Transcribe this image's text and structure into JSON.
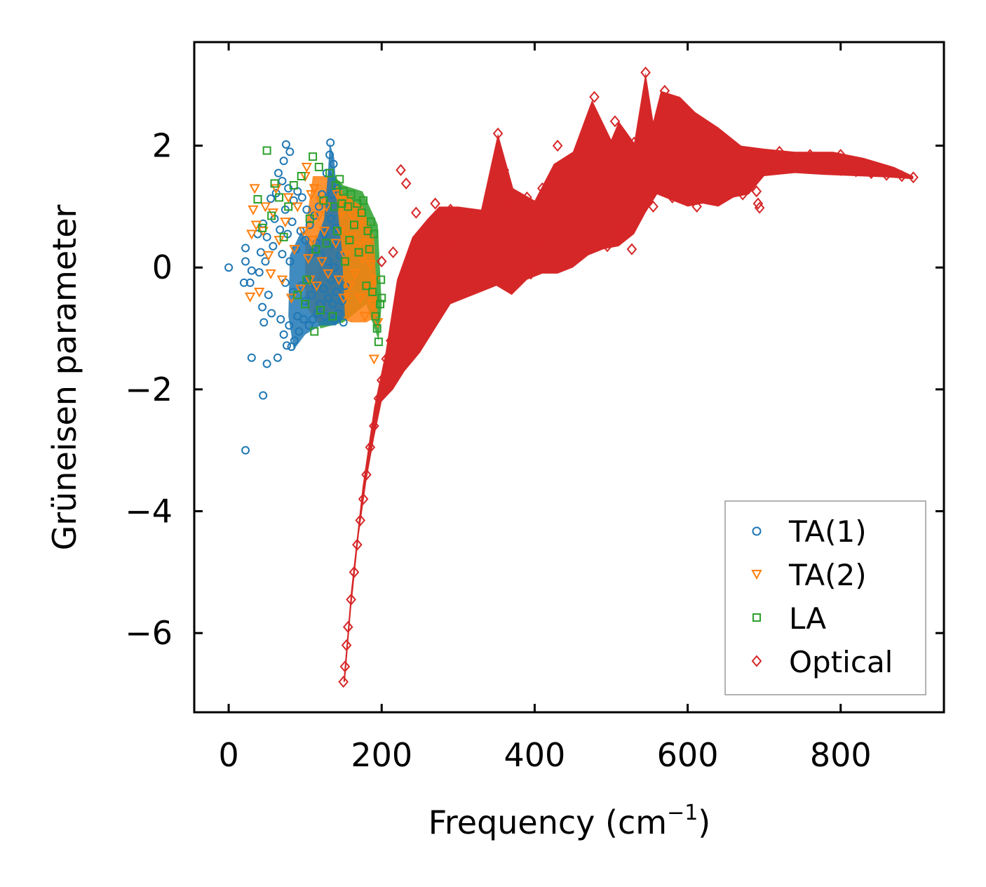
{
  "chart_data": {
    "type": "scatter",
    "title": "",
    "xlabel": "Frequency (cm",
    "xlabel_sup": "−1",
    "xlabel_end": ")",
    "ylabel": "Grüneisen parameter",
    "xlim": [
      -45,
      935
    ],
    "ylim": [
      -7.3,
      3.7
    ],
    "xticks": [
      0,
      200,
      400,
      600,
      800
    ],
    "yticks": [
      2,
      0,
      -2,
      -4,
      -6
    ],
    "xtick_labels": [
      "0",
      "200",
      "400",
      "600",
      "800"
    ],
    "ytick_labels": [
      "2",
      "0",
      "−2",
      "−4",
      "−6"
    ],
    "grid": false,
    "legend_position": "bottom-right",
    "series": [
      {
        "name": "TA(1)",
        "marker": "circle",
        "color": "#1f77b4",
        "points": [
          [
            0,
            0
          ],
          [
            22,
            -3.0
          ],
          [
            20,
            -0.25
          ],
          [
            22,
            0.1
          ],
          [
            22,
            0.32
          ],
          [
            30,
            -1.48
          ],
          [
            28,
            -0.25
          ],
          [
            30,
            -0.05
          ],
          [
            38,
            0.55
          ],
          [
            40,
            -0.08
          ],
          [
            42,
            0.25
          ],
          [
            44,
            -0.65
          ],
          [
            45,
            -2.1
          ],
          [
            45,
            0.72
          ],
          [
            46,
            -0.9
          ],
          [
            48,
            0.1
          ],
          [
            50,
            -1.58
          ],
          [
            50,
            0.5
          ],
          [
            52,
            -0.45
          ],
          [
            55,
            1.13
          ],
          [
            56,
            -0.75
          ],
          [
            58,
            0.35
          ],
          [
            60,
            0.8
          ],
          [
            62,
            1.22
          ],
          [
            64,
            -1.48
          ],
          [
            65,
            1.55
          ],
          [
            67,
            0.62
          ],
          [
            68,
            -0.85
          ],
          [
            70,
            1.42
          ],
          [
            70,
            0.22
          ],
          [
            72,
            -1.1
          ],
          [
            72,
            1.75
          ],
          [
            74,
            0.95
          ],
          [
            74,
            -0.25
          ],
          [
            75,
            2.02
          ],
          [
            76,
            -1.28
          ],
          [
            77,
            0.55
          ],
          [
            78,
            1.3
          ],
          [
            79,
            -0.95
          ],
          [
            80,
            0.1
          ],
          [
            80,
            1.9
          ],
          [
            82,
            -1.3
          ],
          [
            83,
            0.75
          ],
          [
            84,
            -0.4
          ],
          [
            85,
            1.1
          ],
          [
            86,
            -1.2
          ],
          [
            88,
            0.3
          ],
          [
            90,
            -0.8
          ],
          [
            90,
            1.25
          ],
          [
            92,
            -1.05
          ],
          [
            94,
            0.6
          ],
          [
            95,
            -0.3
          ],
          [
            96,
            1.15
          ],
          [
            98,
            -0.85
          ],
          [
            100,
            0.45
          ],
          [
            100,
            -0.55
          ],
          [
            102,
            0.95
          ],
          [
            104,
            -0.2
          ],
          [
            105,
            -0.95
          ],
          [
            106,
            0.7
          ],
          [
            108,
            -0.45
          ],
          [
            110,
            0.25
          ],
          [
            110,
            -0.85
          ],
          [
            112,
            0.85
          ],
          [
            114,
            -0.3
          ],
          [
            115,
            0.4
          ],
          [
            116,
            -0.75
          ],
          [
            118,
            1.0
          ],
          [
            120,
            -0.6
          ],
          [
            120,
            0.2
          ],
          [
            122,
            1.2
          ],
          [
            124,
            -0.35
          ],
          [
            125,
            0.55
          ],
          [
            126,
            -0.8
          ],
          [
            128,
            1.55
          ],
          [
            130,
            0.1
          ],
          [
            130,
            -0.5
          ],
          [
            132,
            1.85
          ],
          [
            133,
            2.05
          ],
          [
            134,
            0.8
          ],
          [
            134,
            -0.2
          ],
          [
            135,
            1.2
          ],
          [
            136,
            0.4
          ],
          [
            136,
            -0.6
          ],
          [
            137,
            1.7
          ],
          [
            138,
            0.0
          ],
          [
            139,
            -0.85
          ],
          [
            140,
            0.65
          ],
          [
            141,
            -0.4
          ],
          [
            142,
            1.3
          ],
          [
            144,
            -0.75
          ],
          [
            146,
            0.2
          ],
          [
            148,
            -0.55
          ],
          [
            150,
            -0.9
          ],
          [
            152,
            -0.3
          ]
        ]
      },
      {
        "name": "TA(2)",
        "marker": "triangle",
        "color": "#ff7f0e",
        "points": [
          [
            28,
            -0.48
          ],
          [
            30,
            0.55
          ],
          [
            32,
            0.95
          ],
          [
            34,
            1.3
          ],
          [
            36,
            0.7
          ],
          [
            40,
            -0.4
          ],
          [
            45,
            0.6
          ],
          [
            48,
            1.0
          ],
          [
            52,
            0.2
          ],
          [
            55,
            -0.1
          ],
          [
            58,
            0.9
          ],
          [
            62,
            1.3
          ],
          [
            66,
            0.45
          ],
          [
            70,
            -0.2
          ],
          [
            74,
            0.75
          ],
          [
            78,
            1.15
          ],
          [
            82,
            -0.5
          ],
          [
            86,
            0.3
          ],
          [
            90,
            1.0
          ],
          [
            94,
            -0.35
          ],
          [
            98,
            0.6
          ],
          [
            100,
            1.5
          ],
          [
            102,
            1.65
          ],
          [
            104,
            0.15
          ],
          [
            106,
            -0.2
          ],
          [
            108,
            1.2
          ],
          [
            110,
            0.45
          ],
          [
            112,
            1.3
          ],
          [
            115,
            -0.3
          ],
          [
            118,
            0.85
          ],
          [
            120,
            1.1
          ],
          [
            122,
            0.1
          ],
          [
            125,
            0.6
          ],
          [
            128,
            1.0
          ],
          [
            130,
            -0.1
          ],
          [
            140,
            0.4
          ],
          [
            142,
            1.2
          ],
          [
            144,
            -0.2
          ],
          [
            146,
            0.6
          ],
          [
            148,
            0.9
          ],
          [
            150,
            -0.5
          ],
          [
            152,
            0.2
          ],
          [
            155,
            1.1
          ],
          [
            158,
            -0.3
          ],
          [
            160,
            0.5
          ],
          [
            162,
            0.85
          ],
          [
            165,
            -0.1
          ],
          [
            168,
            0.35
          ],
          [
            170,
            0.7
          ],
          [
            172,
            -0.5
          ],
          [
            175,
            0.15
          ],
          [
            178,
            -0.8
          ],
          [
            180,
            0.4
          ],
          [
            183,
            -0.3
          ],
          [
            186,
            0.05
          ],
          [
            188,
            -0.6
          ],
          [
            190,
            -1.5
          ],
          [
            192,
            -0.2
          ],
          [
            195,
            -0.9
          ]
        ]
      },
      {
        "name": "LA",
        "marker": "square",
        "color": "#2ca02c",
        "points": [
          [
            50,
            1.92
          ],
          [
            38,
            1.12
          ],
          [
            44,
            0.65
          ],
          [
            56,
            0.85
          ],
          [
            60,
            1.38
          ],
          [
            66,
            1.15
          ],
          [
            72,
            0.5
          ],
          [
            78,
            1.0
          ],
          [
            85,
            1.35
          ],
          [
            90,
            -0.45
          ],
          [
            95,
            1.5
          ],
          [
            100,
            -0.6
          ],
          [
            102,
            -0.2
          ],
          [
            106,
            0.8
          ],
          [
            110,
            1.82
          ],
          [
            112,
            -1.05
          ],
          [
            114,
            0.3
          ],
          [
            118,
            1.65
          ],
          [
            120,
            -0.7
          ],
          [
            124,
            1.1
          ],
          [
            128,
            0.4
          ],
          [
            132,
            1.55
          ],
          [
            136,
            -0.8
          ],
          [
            138,
            1.0
          ],
          [
            140,
            1.35
          ],
          [
            142,
            0.6
          ],
          [
            145,
            1.45
          ],
          [
            148,
            1.05
          ],
          [
            150,
            1.25
          ],
          [
            152,
            0.1
          ],
          [
            156,
            1.0
          ],
          [
            158,
            0.45
          ],
          [
            160,
            1.2
          ],
          [
            164,
            0.7
          ],
          [
            168,
            1.05
          ],
          [
            170,
            0.25
          ],
          [
            174,
            0.9
          ],
          [
            176,
            1.1
          ],
          [
            180,
            -0.3
          ],
          [
            182,
            0.6
          ],
          [
            184,
            0.3
          ],
          [
            186,
            0.75
          ],
          [
            188,
            -0.4
          ],
          [
            190,
            0.55
          ],
          [
            192,
            -0.8
          ],
          [
            194,
            -1.0
          ],
          [
            196,
            -1.22
          ],
          [
            198,
            -0.6
          ],
          [
            199,
            -0.2
          ],
          [
            200,
            -0.5
          ]
        ]
      },
      {
        "name": "Optical",
        "marker": "diamond",
        "color": "#d62728",
        "points": [
          [
            150,
            -6.8
          ],
          [
            152,
            -6.55
          ],
          [
            154,
            -6.2
          ],
          [
            156,
            -5.9
          ],
          [
            160,
            -5.45
          ],
          [
            164,
            -5.0
          ],
          [
            168,
            -4.55
          ],
          [
            172,
            -4.15
          ],
          [
            176,
            -3.8
          ],
          [
            180,
            -3.4
          ],
          [
            185,
            -2.95
          ],
          [
            190,
            -2.6
          ],
          [
            196,
            -2.15
          ],
          [
            200,
            -1.85
          ],
          [
            206,
            -1.5
          ],
          [
            212,
            -1.2
          ],
          [
            220,
            -0.9
          ],
          [
            230,
            -0.6
          ],
          [
            240,
            -0.3
          ],
          [
            250,
            -0.05
          ],
          [
            265,
            0.2
          ],
          [
            285,
            0.35
          ],
          [
            300,
            0.55
          ],
          [
            320,
            0.7
          ],
          [
            340,
            0.9
          ],
          [
            355,
            1.05
          ],
          [
            370,
            1.0
          ],
          [
            390,
            1.15
          ],
          [
            410,
            1.3
          ],
          [
            430,
            1.55
          ],
          [
            450,
            1.75
          ],
          [
            470,
            1.9
          ],
          [
            490,
            1.95
          ],
          [
            510,
            2.0
          ],
          [
            530,
            2.05
          ],
          [
            545,
            2.1
          ],
          [
            560,
            2.0
          ],
          [
            580,
            1.95
          ],
          [
            600,
            1.9
          ],
          [
            620,
            1.85
          ],
          [
            640,
            1.8
          ],
          [
            660,
            1.75
          ],
          [
            680,
            1.7
          ],
          [
            700,
            1.68
          ],
          [
            720,
            1.65
          ],
          [
            740,
            1.65
          ],
          [
            760,
            1.63
          ],
          [
            780,
            1.62
          ],
          [
            800,
            1.6
          ],
          [
            820,
            1.58
          ],
          [
            840,
            1.55
          ],
          [
            860,
            1.52
          ],
          [
            880,
            1.5
          ],
          [
            895,
            1.48
          ],
          [
            200,
            0.1
          ],
          [
            215,
            0.25
          ],
          [
            225,
            1.6
          ],
          [
            232,
            1.38
          ],
          [
            245,
            0.9
          ],
          [
            258,
            0.6
          ],
          [
            270,
            1.05
          ],
          [
            290,
            0.95
          ],
          [
            310,
            0.3
          ],
          [
            330,
            -0.2
          ],
          [
            345,
            0.5
          ],
          [
            352,
            2.2
          ],
          [
            360,
            1.6
          ],
          [
            372,
            -0.3
          ],
          [
            385,
            0.2
          ],
          [
            395,
            -0.1
          ],
          [
            405,
            0.4
          ],
          [
            420,
            0.05
          ],
          [
            430,
            2.0
          ],
          [
            440,
            0.55
          ],
          [
            455,
            0.3
          ],
          [
            470,
            0.4
          ],
          [
            478,
            2.8
          ],
          [
            485,
            0.8
          ],
          [
            495,
            0.35
          ],
          [
            505,
            2.4
          ],
          [
            515,
            0.6
          ],
          [
            527,
            0.3
          ],
          [
            545,
            3.2
          ],
          [
            548,
            1.3
          ],
          [
            555,
            1.0
          ],
          [
            570,
            2.9
          ],
          [
            580,
            1.15
          ],
          [
            595,
            1.3
          ],
          [
            605,
            2.5
          ],
          [
            612,
            1.0
          ],
          [
            625,
            1.5
          ],
          [
            640,
            2.2
          ],
          [
            660,
            1.55
          ],
          [
            672,
            1.2
          ],
          [
            690,
            1.25
          ],
          [
            692,
            1.05
          ],
          [
            694,
            0.98
          ],
          [
            700,
            1.65
          ],
          [
            720,
            1.9
          ],
          [
            760,
            1.85
          ],
          [
            800,
            1.85
          ]
        ]
      }
    ]
  }
}
